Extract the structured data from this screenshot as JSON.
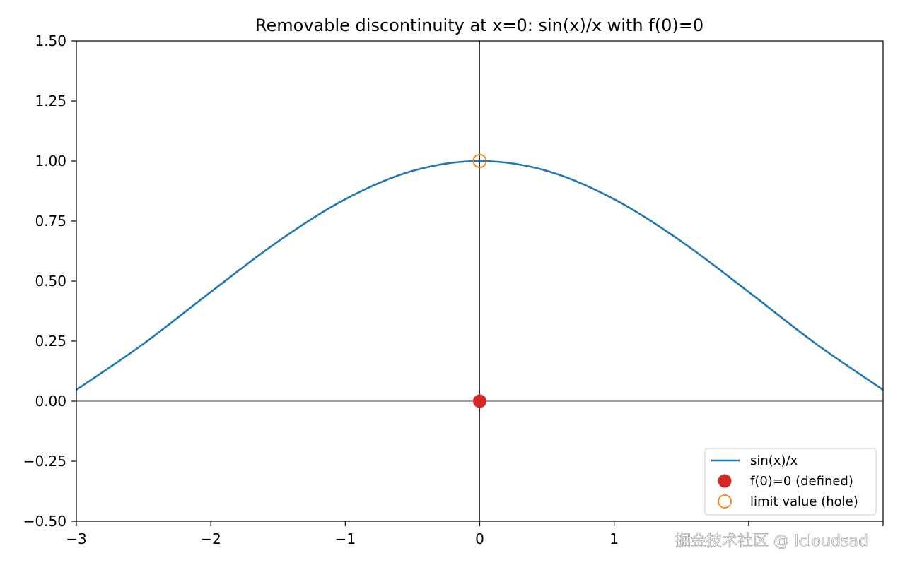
{
  "chart_data": {
    "type": "line",
    "title": "Removable discontinuity at x=0: sin(x)/x with f(0)=0",
    "xlabel": "",
    "ylabel": "",
    "xlim": [
      -3,
      3
    ],
    "ylim": [
      -0.5,
      1.5
    ],
    "x_ticks": [
      -3,
      -2,
      -1,
      0,
      1,
      2,
      3
    ],
    "x_tick_labels": [
      "−3",
      "−2",
      "−1",
      "0",
      "1",
      "",
      ""
    ],
    "y_ticks": [
      -0.5,
      -0.25,
      0,
      0.25,
      0.5,
      0.75,
      1.0,
      1.25,
      1.5
    ],
    "y_tick_labels": [
      "−0.50",
      "−0.25",
      "0.00",
      "0.25",
      "0.50",
      "0.75",
      "1.00",
      "1.25",
      "1.50"
    ],
    "grid": false,
    "reference_lines": {
      "x": 0,
      "y": 0
    },
    "series": [
      {
        "name": "sin(x)/x",
        "kind": "line",
        "color": "#1f77b4",
        "x": [
          -3.0,
          -2.5,
          -2.0,
          -1.5,
          -1.0,
          -0.5,
          0.0,
          0.5,
          1.0,
          1.5,
          2.0,
          2.5,
          3.0
        ],
        "y": [
          0.047,
          0.239,
          0.455,
          0.665,
          0.841,
          0.959,
          1.0,
          0.959,
          0.841,
          0.665,
          0.455,
          0.239,
          0.047
        ]
      },
      {
        "name": "f(0)=0 (defined)",
        "kind": "scatter",
        "marker": "filled-circle",
        "color": "#d62728",
        "x": [
          0
        ],
        "y": [
          0
        ]
      },
      {
        "name": "limit value (hole)",
        "kind": "scatter",
        "marker": "hollow-circle",
        "color": "#ff7f0e",
        "x": [
          0
        ],
        "y": [
          1
        ]
      }
    ],
    "legend": {
      "placement": "lower-right",
      "entries": [
        "sin(x)/x",
        "f(0)=0 (defined)",
        "limit value (hole)"
      ]
    }
  },
  "watermark": "掘金技术社区 @ Icloudsad"
}
